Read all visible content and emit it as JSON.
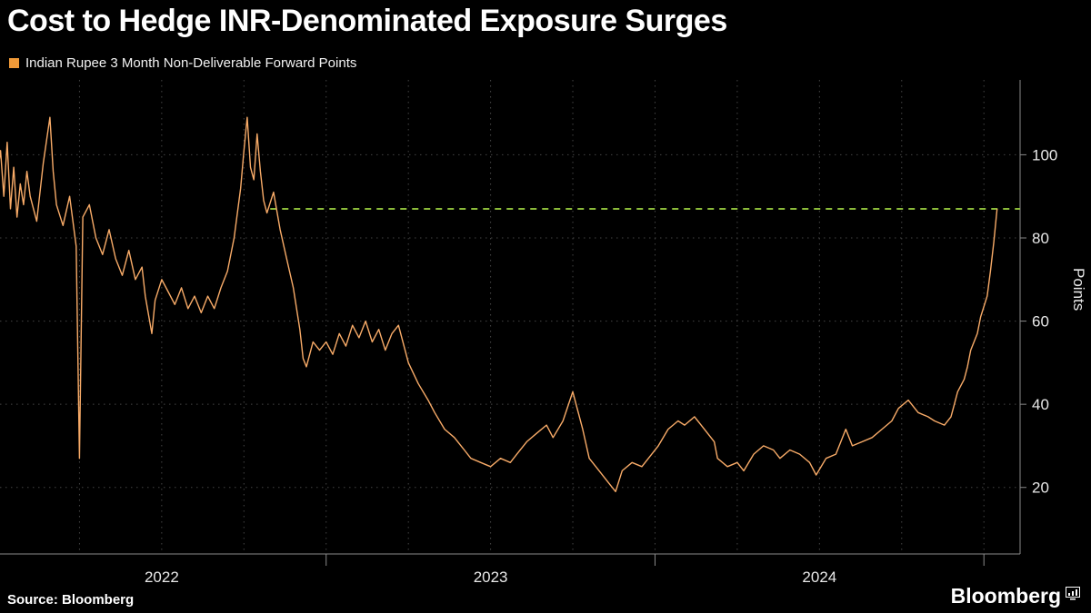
{
  "title": "Cost to Hedge INR-Denominated Exposure Surges",
  "legend": {
    "marker_color": "#f09a38",
    "label": "Indian Rupee 3 Month Non-Deliverable Forward Points"
  },
  "source": "Source: Bloomberg",
  "branding": {
    "logo_text": "Bloomberg"
  },
  "axis": {
    "y_label": "Points"
  },
  "colors": {
    "background": "#000000",
    "line": "#f8ab68",
    "marker": "#f09a38",
    "dashed_line": "#8bbb3a",
    "grid": "#454545",
    "axis": "#8a8a8a",
    "text": "#ffffff"
  },
  "chart_data": {
    "type": "line",
    "title": "Cost to Hedge INR-Denominated Exposure Surges",
    "xlabel": "",
    "ylabel": "Points",
    "ylim": [
      4,
      118
    ],
    "xlim": [
      2022.0,
      2025.11
    ],
    "grid": "dotted, horizontal at y ticks and vertical quarterly",
    "y_ticks": [
      20,
      40,
      60,
      80,
      100
    ],
    "x_tick_labels": [
      "2022",
      "2023",
      "2024"
    ],
    "annotation_line": {
      "y": 87,
      "x_start": 2022.83,
      "style": "dashed",
      "color": "#8bbb3a"
    },
    "series": [
      {
        "name": "Indian Rupee 3 Month Non-Deliverable Forward Points",
        "color": "#f8ab68",
        "x": [
          2022.0,
          2022.01,
          2022.02,
          2022.03,
          2022.04,
          2022.05,
          2022.06,
          2022.07,
          2022.08,
          2022.09,
          2022.1,
          2022.12,
          2022.14,
          2022.16,
          2022.17,
          2022.18,
          2022.2,
          2022.22,
          2022.24,
          2022.25,
          2022.26,
          2022.28,
          2022.3,
          2022.32,
          2022.34,
          2022.36,
          2022.38,
          2022.4,
          2022.42,
          2022.44,
          2022.45,
          2022.47,
          2022.48,
          2022.5,
          2022.52,
          2022.54,
          2022.56,
          2022.58,
          2022.6,
          2022.62,
          2022.64,
          2022.66,
          2022.68,
          2022.7,
          2022.72,
          2022.74,
          2022.75,
          2022.76,
          2022.77,
          2022.78,
          2022.79,
          2022.8,
          2022.81,
          2022.82,
          2022.84,
          2022.86,
          2022.88,
          2022.9,
          2022.92,
          2022.93,
          2022.94,
          2022.96,
          2022.98,
          2023.0,
          2023.02,
          2023.04,
          2023.06,
          2023.08,
          2023.1,
          2023.12,
          2023.14,
          2023.16,
          2023.18,
          2023.2,
          2023.22,
          2023.25,
          2023.28,
          2023.31,
          2023.33,
          2023.36,
          2023.39,
          2023.42,
          2023.44,
          2023.47,
          2023.5,
          2023.53,
          2023.56,
          2023.58,
          2023.61,
          2023.64,
          2023.67,
          2023.69,
          2023.72,
          2023.75,
          2023.78,
          2023.8,
          2023.83,
          2023.86,
          2023.88,
          2023.9,
          2023.93,
          2023.96,
          2023.98,
          2024.01,
          2024.04,
          2024.07,
          2024.09,
          2024.12,
          2024.15,
          2024.18,
          2024.19,
          2024.22,
          2024.25,
          2024.27,
          2024.3,
          2024.33,
          2024.36,
          2024.38,
          2024.41,
          2024.44,
          2024.47,
          2024.49,
          2024.52,
          2024.55,
          2024.58,
          2024.6,
          2024.63,
          2024.66,
          2024.69,
          2024.72,
          2024.74,
          2024.77,
          2024.8,
          2024.83,
          2024.85,
          2024.88,
          2024.9,
          2024.91,
          2024.92,
          2024.94,
          2024.95,
          2024.96,
          2024.98,
          2024.99,
          2025.01,
          2025.02,
          2025.03,
          2025.04
        ],
        "y": [
          95,
          101,
          90,
          103,
          87,
          97,
          85,
          93,
          88,
          96,
          90,
          84,
          98,
          109,
          96,
          88,
          83,
          90,
          78,
          27,
          85,
          88,
          80,
          76,
          82,
          75,
          71,
          77,
          70,
          73,
          66,
          57,
          65,
          70,
          67,
          64,
          68,
          63,
          66,
          62,
          66,
          63,
          68,
          72,
          80,
          92,
          101,
          109,
          97,
          94,
          105,
          96,
          89,
          86,
          91,
          82,
          75,
          68,
          58,
          51,
          49,
          55,
          53,
          55,
          52,
          57,
          54,
          59,
          56,
          60,
          55,
          58,
          53,
          57,
          59,
          50,
          45,
          41,
          38,
          34,
          32,
          29,
          27,
          26,
          25,
          27,
          26,
          28,
          31,
          33,
          35,
          32,
          36,
          43,
          34,
          27,
          24,
          21,
          19,
          24,
          26,
          25,
          27,
          30,
          34,
          36,
          35,
          37,
          34,
          31,
          27,
          25,
          26,
          24,
          28,
          30,
          29,
          27,
          29,
          28,
          26,
          23,
          27,
          28,
          34,
          30,
          31,
          32,
          34,
          36,
          39,
          41,
          38,
          37,
          36,
          35,
          37,
          40,
          43,
          46,
          49,
          53,
          57,
          61,
          66,
          72,
          79,
          87
        ]
      }
    ]
  }
}
